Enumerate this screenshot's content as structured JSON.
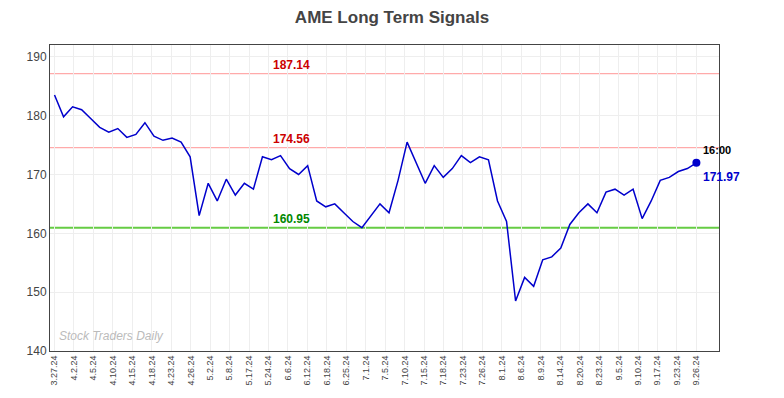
{
  "chart_data": {
    "type": "line",
    "title": "AME Long Term Signals",
    "color": "#0000cc",
    "grid": true,
    "x": [
      0,
      1,
      2,
      3,
      4,
      5,
      6,
      7,
      8,
      9,
      10,
      11,
      12,
      13,
      14,
      15,
      16,
      17,
      18,
      19,
      20,
      21,
      22,
      23,
      24,
      25,
      26,
      27,
      28,
      29,
      30,
      31,
      32,
      33,
      34,
      35,
      36,
      37,
      38,
      39,
      40,
      41,
      42,
      43,
      44,
      45,
      46,
      47,
      48,
      49,
      50,
      51,
      52,
      53,
      54,
      55,
      56,
      57,
      58,
      59,
      60,
      61,
      62,
      63,
      64,
      65,
      66,
      67,
      68,
      69,
      70,
      71
    ],
    "values": [
      183.5,
      179.8,
      181.5,
      181.0,
      179.5,
      178.0,
      177.2,
      177.8,
      176.3,
      176.8,
      178.8,
      176.5,
      175.8,
      176.2,
      175.5,
      173.0,
      163.0,
      168.5,
      165.5,
      169.2,
      166.5,
      168.5,
      167.5,
      173.0,
      172.5,
      173.2,
      171.0,
      170.0,
      171.5,
      165.5,
      164.5,
      165.0,
      163.5,
      162.0,
      160.95,
      163.0,
      165.0,
      163.5,
      169.0,
      175.5,
      172.0,
      168.5,
      171.5,
      169.5,
      171.0,
      173.2,
      172.0,
      173.0,
      172.5,
      165.5,
      162.0,
      148.5,
      152.5,
      151.0,
      155.5,
      156.0,
      157.5,
      161.5,
      163.5,
      165.0,
      163.5,
      167.0,
      167.5,
      166.5,
      167.5,
      162.5,
      165.5,
      169.0,
      169.5,
      170.5,
      171.0,
      171.97
    ],
    "xlim": [
      -0.5,
      73.5
    ],
    "xticks": [
      {
        "value": 0,
        "label": "3.27.24"
      },
      {
        "value": 2.151515,
        "label": "4.2.24"
      },
      {
        "value": 4.30303,
        "label": "4.5.24"
      },
      {
        "value": 6.454545,
        "label": "4.10.24"
      },
      {
        "value": 8.606061,
        "label": "4.15.24"
      },
      {
        "value": 10.757576,
        "label": "4.18.24"
      },
      {
        "value": 12.909091,
        "label": "4.23.24"
      },
      {
        "value": 15.060606,
        "label": "4.26.24"
      },
      {
        "value": 17.212121,
        "label": "5.2.24"
      },
      {
        "value": 19.363636,
        "label": "5.8.24"
      },
      {
        "value": 21.515152,
        "label": "5.17.24"
      },
      {
        "value": 23.666667,
        "label": "5.24.24"
      },
      {
        "value": 25.818182,
        "label": "6.6.24"
      },
      {
        "value": 27.969697,
        "label": "6.12.24"
      },
      {
        "value": 30.121212,
        "label": "6.18.24"
      },
      {
        "value": 32.272727,
        "label": "6.25.24"
      },
      {
        "value": 34.424242,
        "label": "7.1.24"
      },
      {
        "value": 36.575758,
        "label": "7.5.24"
      },
      {
        "value": 38.727273,
        "label": "7.10.24"
      },
      {
        "value": 40.878788,
        "label": "7.15.24"
      },
      {
        "value": 43.030303,
        "label": "7.18.24"
      },
      {
        "value": 45.181818,
        "label": "7.23.24"
      },
      {
        "value": 47.333333,
        "label": "7.26.24"
      },
      {
        "value": 49.484848,
        "label": "8.1.24"
      },
      {
        "value": 51.636364,
        "label": "8.6.24"
      },
      {
        "value": 53.787879,
        "label": "8.9.24"
      },
      {
        "value": 55.939394,
        "label": "8.14.24"
      },
      {
        "value": 58.090909,
        "label": "8.20.24"
      },
      {
        "value": 60.242424,
        "label": "8.23.24"
      },
      {
        "value": 62.393939,
        "label": "9.5.24"
      },
      {
        "value": 64.545455,
        "label": "9.10.24"
      },
      {
        "value": 66.69697,
        "label": "9.17.24"
      },
      {
        "value": 68.848485,
        "label": "9.23.24"
      },
      {
        "value": 71,
        "label": "9.26.24"
      }
    ],
    "ylim": [
      140,
      192
    ],
    "yticks": [
      140,
      150,
      160,
      170,
      180,
      190
    ],
    "reference_lines": [
      {
        "value": 187.14,
        "label": "187.14",
        "color": "#ffaaaa",
        "label_color": "#cc0000"
      },
      {
        "value": 174.56,
        "label": "174.56",
        "color": "#ffaaaa",
        "label_color": "#cc0000"
      },
      {
        "value": 160.95,
        "label": "160.95",
        "color": "#66cc44",
        "label_color": "#008800"
      }
    ],
    "annotations": [
      {
        "text": "16:00",
        "color": "#000000"
      },
      {
        "text": "171.97",
        "value": 171.97,
        "color": "#0000cc"
      },
      {
        "text": "Stock Traders Daily",
        "color": "#bbbbbb"
      }
    ]
  }
}
